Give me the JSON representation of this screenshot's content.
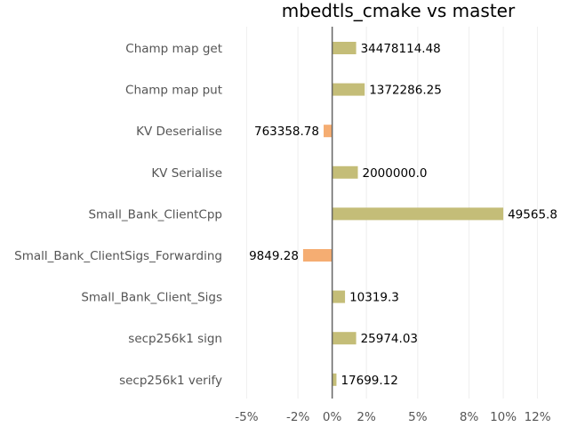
{
  "chart_data": {
    "type": "bar",
    "orientation": "horizontal",
    "title": "mbedtls_cmake vs master",
    "xlabel": "",
    "ylabel": "",
    "categories": [
      "Champ map get",
      "Champ map put",
      "KV Deserialise",
      "KV Serialise",
      "Small_Bank_ClientCpp",
      "Small_Bank_ClientSigs_Forwarding",
      "Small_Bank_Client_Sigs",
      "secp256k1 sign",
      "secp256k1 verify"
    ],
    "values_percent": [
      1.4,
      1.9,
      -0.5,
      1.5,
      10.0,
      -1.7,
      0.75,
      1.4,
      0.25
    ],
    "data_labels": [
      "34478114.48",
      "1372286.25",
      "763358.78",
      "2000000.0",
      "49565.8",
      "9849.28",
      "10319.3",
      "25974.03",
      "17699.12"
    ],
    "xticks": [
      -5,
      -2,
      0,
      2,
      5,
      8,
      10,
      12
    ],
    "xtick_labels": [
      "-5%",
      "-2%",
      "0%",
      "2%",
      "5%",
      "8%",
      "10%",
      "12%"
    ],
    "xlim": [
      -5.8,
      12.8
    ],
    "grid": "vertical",
    "legend": "none",
    "colors": {
      "positive": "#c4bd78",
      "negative": "#f5ad72",
      "zero_line": "#666666",
      "grid": "#eeeeee"
    }
  }
}
